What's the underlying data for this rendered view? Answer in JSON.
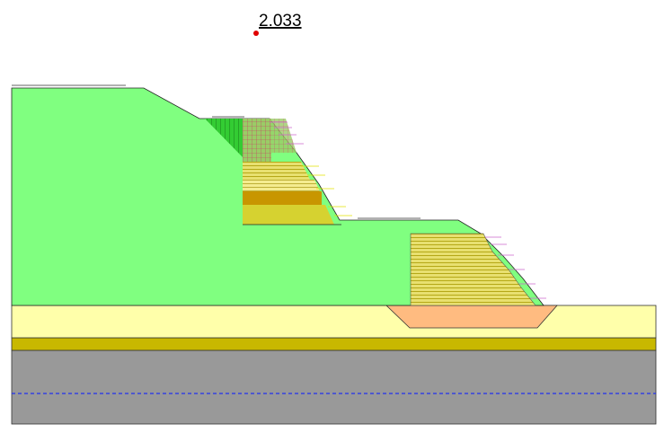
{
  "annotation": {
    "factor_of_safety": "2.033"
  }
}
